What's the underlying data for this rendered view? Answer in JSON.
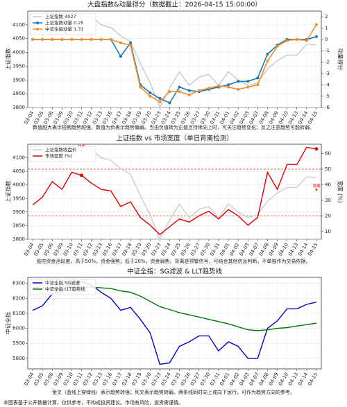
{
  "chart_data": [
    {
      "type": "line",
      "title": "大盘指数&动量得分（数据截止：2026-04-15 15:00:00）",
      "categories": [
        "03-04",
        "03-05",
        "03-06",
        "03-09",
        "03-10",
        "03-11",
        "03-12",
        "03-13",
        "03-16",
        "03-17",
        "03-18",
        "03-19",
        "03-20",
        "03-23",
        "03-24",
        "03-25",
        "03-26",
        "03-27",
        "03-30",
        "03-31",
        "04-01",
        "04-02",
        "04-03",
        "04-07",
        "04-08",
        "04-09",
        "04-10",
        "04-13",
        "04-14",
        "04-15"
      ],
      "y_label": "上证指数",
      "y2_label": "动量得分",
      "ylim": [
        3800,
        4150
      ],
      "yticks": [
        3800,
        3850,
        3900,
        3950,
        4000,
        4050,
        4100
      ],
      "y2lim": [
        -6,
        2.5
      ],
      "y2ticks": [
        -6,
        -5,
        -4,
        -3,
        -2,
        -1,
        0,
        1,
        2
      ],
      "grid": true,
      "legend": "upper left",
      "series": [
        {
          "name": "上证指数 4027",
          "color": "#c8c8c8",
          "axis": "y",
          "marker": false,
          "values": [
            4100,
            4105,
            4115,
            4120,
            4130,
            4135,
            4130,
            4100,
            4090,
            4060,
            4040,
            3960,
            3890,
            3800,
            3870,
            3930,
            3880,
            3910,
            3920,
            3880,
            3930,
            3900,
            3880,
            3890,
            3940,
            3970,
            3990,
            3990,
            4030,
            4027
          ]
        },
        {
          "name": "上证指数动量 0.25",
          "color": "#1f77b4",
          "axis": "y2",
          "marker": true,
          "values": [
            0,
            0,
            0,
            0,
            0,
            0,
            0,
            0,
            0,
            -1.5,
            -0.3,
            -4.0,
            -4.7,
            -5.2,
            -5.6,
            -4.2,
            -4.5,
            -4.6,
            -4.4,
            -4.2,
            -4.0,
            -3.7,
            -3.7,
            -3.4,
            -1.3,
            -0.5,
            0.0,
            0.0,
            0.0,
            0.25
          ]
        },
        {
          "name": "中证全指动量 1.31",
          "color": "#f28e2b",
          "axis": "y2",
          "marker": true,
          "values": [
            0,
            0,
            0,
            0,
            0,
            0,
            0,
            0,
            0,
            -0.3,
            -0.5,
            -4.2,
            -5.0,
            -5.5,
            -4.6,
            -4.6,
            -4.9,
            -4.5,
            -4.3,
            -4.1,
            -4.2,
            -4.4,
            -4.2,
            -4.0,
            -1.9,
            -0.6,
            -0.1,
            0.0,
            -0.1,
            1.31
          ]
        }
      ],
      "caption": "数值越大表示短期趋势越强，数值为负表示趋势偏弱。当由负值转为正值且持续向上时，可关注趋势变化；反之注意趋势可能转弱。"
    },
    {
      "type": "line",
      "title": "上证指数 vs 市场宽度（单日背离检测）",
      "categories": [
        "03-04",
        "03-05",
        "03-06",
        "03-09",
        "03-10",
        "03-11",
        "03-12",
        "03-13",
        "03-16",
        "03-17",
        "03-18",
        "03-19",
        "03-20",
        "03-23",
        "03-24",
        "03-25",
        "03-26",
        "03-27",
        "03-30",
        "03-31",
        "04-01",
        "04-02",
        "04-03",
        "04-07",
        "04-08",
        "04-09",
        "04-10",
        "04-13",
        "04-14",
        "04-15"
      ],
      "y_label": "上证指数",
      "y2_label": "宽度 (%)",
      "ylim": [
        3800,
        4150
      ],
      "yticks": [
        3800,
        3850,
        3900,
        3950,
        4000,
        4050,
        4100
      ],
      "y2lim": [
        5,
        66
      ],
      "y2ticks": [
        10,
        20,
        30,
        40,
        50,
        60
      ],
      "grid": true,
      "legend": "upper left",
      "reference_lines": [
        {
          "value": 50,
          "axis": "y2",
          "color": "#e00000"
        },
        {
          "value": 20,
          "axis": "y2",
          "color": "#e00000"
        }
      ],
      "series": [
        {
          "name": "上证指数收盘价",
          "color": "#cccccc",
          "axis": "y",
          "marker": false,
          "values": [
            4100,
            4105,
            4115,
            4120,
            4130,
            4135,
            4130,
            4100,
            4090,
            4060,
            4040,
            3960,
            3890,
            3800,
            3870,
            3930,
            3880,
            3910,
            3920,
            3880,
            3930,
            3900,
            3880,
            3890,
            3940,
            3970,
            3990,
            3990,
            4030,
            4027
          ]
        },
        {
          "name": "市场宽度 (%)",
          "color": "#e00000",
          "axis": "y2",
          "marker": false,
          "values": [
            27,
            32,
            42,
            37,
            48,
            46,
            41,
            37,
            36,
            26,
            29,
            19,
            14,
            8,
            13,
            18,
            16,
            20,
            23,
            18,
            24,
            20,
            14,
            19,
            48,
            37,
            53,
            53,
            64,
            63
          ]
        }
      ],
      "annotations": [
        {
          "text": "背离",
          "x": "03-11"
        },
        {
          "text": "背离",
          "x": "04-15"
        }
      ],
      "caption": "监控资金活跃度，高于50%，资金强势；低于20%，资金弱势。背离是预警信号，可结合其他信息判断，不单独作为交易依据。"
    },
    {
      "type": "line",
      "title": "中证全指：SG滤波 & LLT趋势线",
      "categories": [
        "03-04",
        "03-05",
        "03-06",
        "03-09",
        "03-10",
        "03-11",
        "03-12",
        "03-13",
        "03-16",
        "03-17",
        "03-18",
        "03-19",
        "03-20",
        "03-23",
        "03-24",
        "03-25",
        "03-26",
        "03-27",
        "03-30",
        "03-31",
        "04-01",
        "04-02",
        "04-03",
        "04-07",
        "04-08",
        "04-09",
        "04-10",
        "04-13",
        "04-14",
        "04-15"
      ],
      "y_label": "中证全指",
      "ylim": [
        5730,
        6340
      ],
      "yticks": [
        5800,
        5900,
        6000,
        6100,
        6200,
        6300
      ],
      "grid": true,
      "legend": "upper left",
      "series": [
        {
          "name": "中证全指 SG滤波",
          "color": "#0000cc",
          "axis": "y",
          "marker": false,
          "values": [
            6120,
            6150,
            6230,
            6250,
            6300,
            6310,
            6290,
            6240,
            6200,
            6120,
            6140,
            6060,
            5970,
            5760,
            5770,
            5880,
            5910,
            5950,
            5950,
            5850,
            5910,
            5880,
            5800,
            5800,
            6000,
            6050,
            6130,
            6130,
            6160,
            6175
          ]
        },
        {
          "name": "中证全指 LLT趋势线",
          "color": "#007700",
          "axis": "y",
          "marker": false,
          "values": [
            6270,
            6270,
            6270,
            6270,
            6275,
            6275,
            6275,
            6270,
            6265,
            6250,
            6240,
            6215,
            6180,
            6145,
            6125,
            6105,
            6090,
            6075,
            6060,
            6045,
            6030,
            6010,
            5990,
            5985,
            5990,
            6000,
            6005,
            6015,
            6025,
            6035
          ]
        }
      ],
      "caption": "金叉（蓝线上穿绿线）表示趋势转强；死叉表示趋势转弱。两条线同时向上或向下运行，可作为趋势方向的参考。"
    }
  ],
  "footer": "本图表基于公开数据计算，仅供参考，不构成投资建议。市场有风险，投资需谨慎。"
}
